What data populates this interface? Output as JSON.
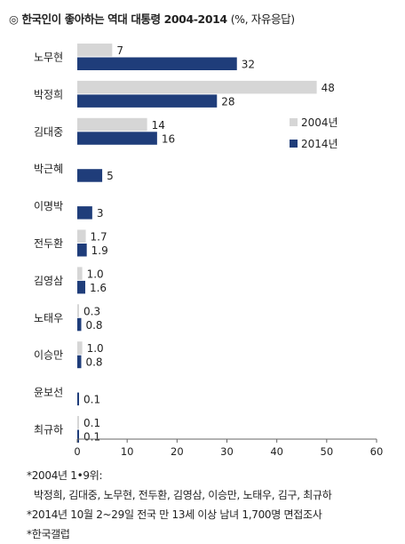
{
  "title": "◎ 한국인이 좋아하는 역대 대통령 2004-2014",
  "subtitle": "(%, 자유응답)",
  "chart_data": {
    "type": "bar",
    "orientation": "horizontal",
    "categories": [
      "노무현",
      "박정희",
      "김대중",
      "박근혜",
      "이명박",
      "전두환",
      "김영삼",
      "노태우",
      "이승만",
      "윤보선",
      "최규하"
    ],
    "series": [
      {
        "name": "2004년",
        "color": "#d6d6d6",
        "values": [
          7,
          48,
          14,
          null,
          null,
          1.7,
          1.0,
          0.3,
          1.0,
          null,
          0.1
        ],
        "labels": [
          "7",
          "48",
          "14",
          "",
          "",
          "1.7",
          "1.0",
          "0.3",
          "1.0",
          "",
          "0.1"
        ]
      },
      {
        "name": "2014년",
        "color": "#1f3d7a",
        "values": [
          32,
          28,
          16,
          5,
          3,
          1.9,
          1.6,
          0.8,
          0.8,
          0.1,
          0.1
        ],
        "labels": [
          "32",
          "28",
          "16",
          "5",
          "3",
          "1.9",
          "1.6",
          "0.8",
          "0.8",
          "0.1",
          "0.1"
        ]
      }
    ],
    "xlim": [
      0,
      60
    ],
    "xticks": [
      "0",
      "10",
      "20",
      "30",
      "40",
      "50",
      "60"
    ],
    "legend_position": "right",
    "grid": false
  },
  "notes": [
    "*2004년 1•9위:",
    "박정희, 김대중, 노무현, 전두환, 김영삼, 이승만, 노태우, 김구, 최규하",
    "*2014년 10월 2~29일 전국 만 13세 이상 남녀 1,700명 면접조사",
    "*한국갤럽"
  ]
}
